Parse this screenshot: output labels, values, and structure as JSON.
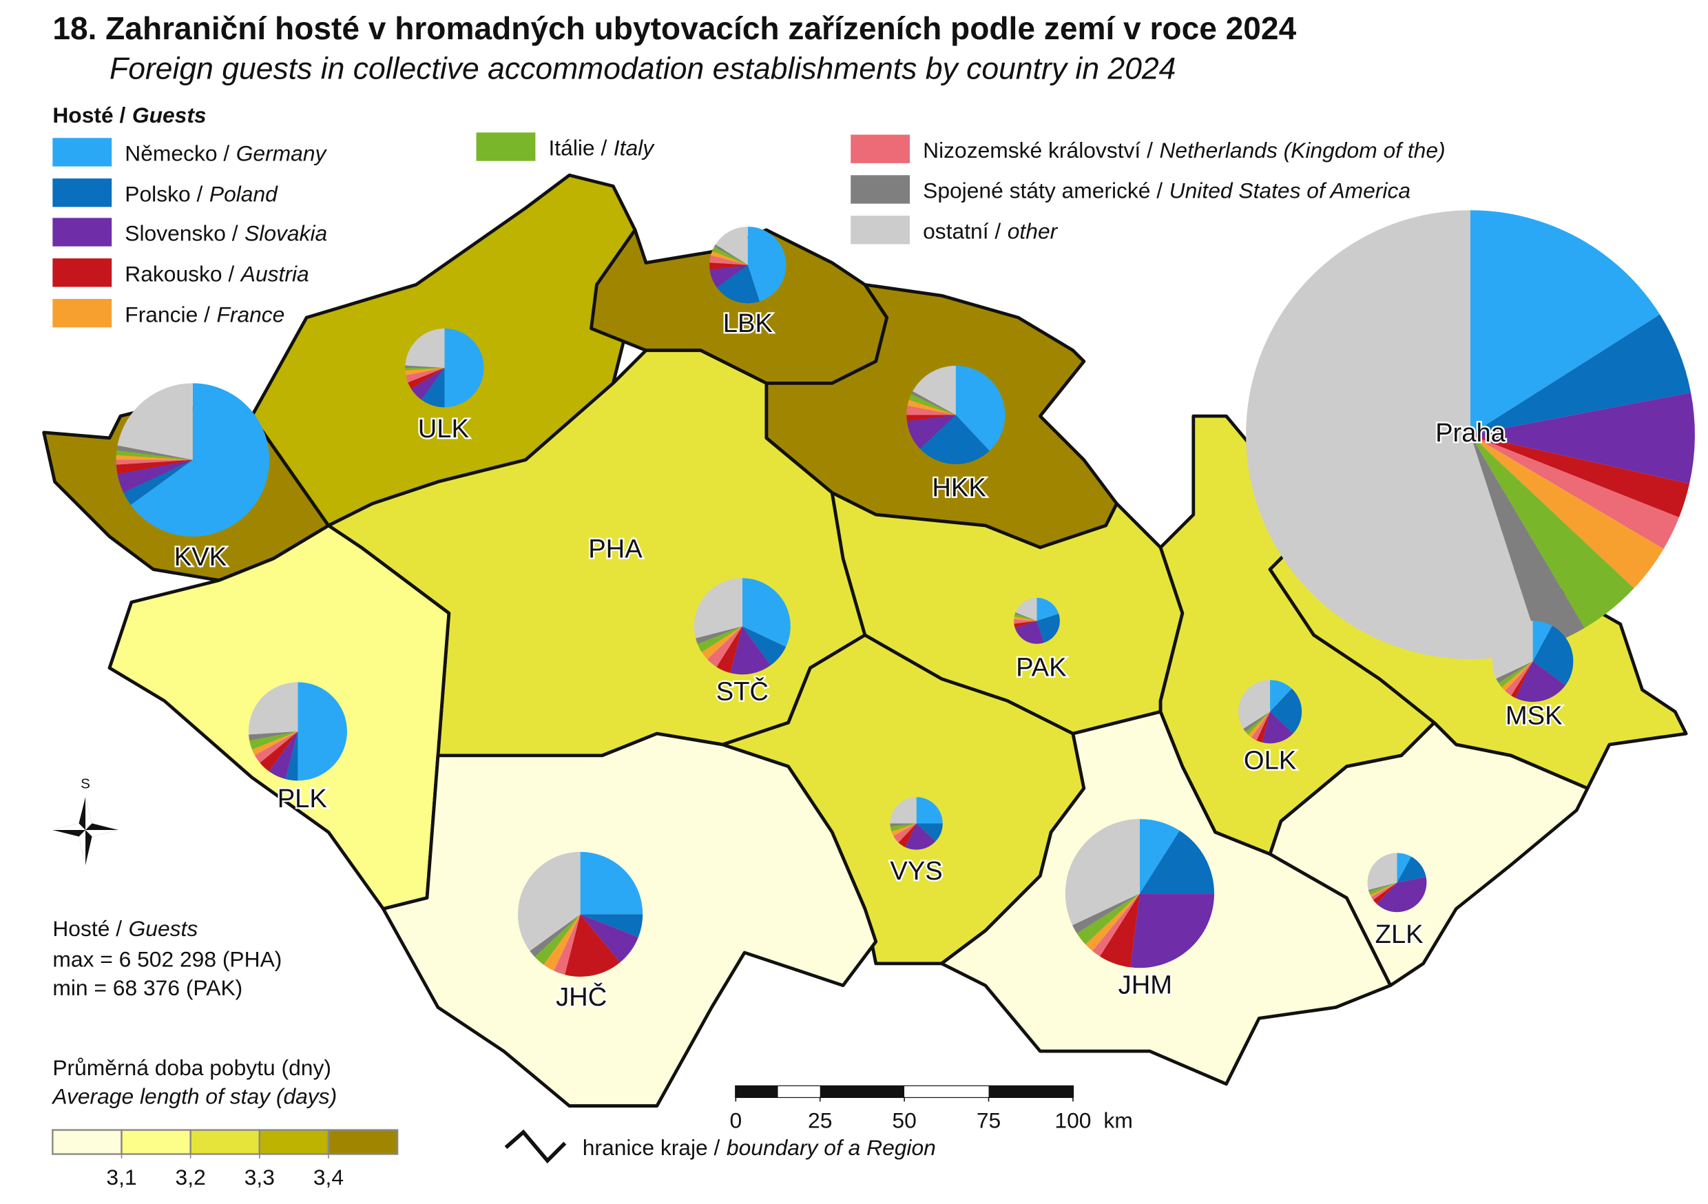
{
  "header": {
    "number": "18.",
    "title": "Zahraniční hosté v hromadných ubytovacích zařízeních podle zemí v roce 2024",
    "subtitle": "Foreign guests in collective accommodation establishments by country in 2024"
  },
  "legend": {
    "title_cz": "Hosté /",
    "title_en": "Guests"
  },
  "countries": [
    {
      "cz": "Německo /",
      "en": "Germany",
      "color": "#2aa8f5"
    },
    {
      "cz": "Polsko /",
      "en": "Poland",
      "color": "#0a6fbd"
    },
    {
      "cz": "Slovensko /",
      "en": "Slovakia",
      "color": "#6f2da8"
    },
    {
      "cz": "Rakousko /",
      "en": "Austria",
      "color": "#c4161c"
    },
    {
      "cz": "Nizozemské království /",
      "en": "Netherlands (Kingdom of the)",
      "color": "#ec6b77"
    },
    {
      "cz": "Francie /",
      "en": "France",
      "color": "#f7a030"
    },
    {
      "cz": "Itálie /",
      "en": "Italy",
      "color": "#7ab629"
    },
    {
      "cz": "Spojené státy americké /",
      "en": "United States of America",
      "color": "#7f7f7f"
    },
    {
      "cz": "ostatní /",
      "en": "other",
      "color": "#cccccc"
    }
  ],
  "regions": [
    {
      "code": "PHA",
      "pie_label": "Praha",
      "guests": 6502298,
      "stay_class": 4,
      "shares": [
        16,
        6,
        6.5,
        2.5,
        2.5,
        3.5,
        4.5,
        3.5,
        55
      ]
    },
    {
      "code": "KVK",
      "guests": 758000,
      "stay_class": 4,
      "shares": [
        65,
        3,
        4,
        2,
        1,
        1,
        1,
        1,
        22
      ]
    },
    {
      "code": "ULK",
      "guests": 200500,
      "stay_class": 3,
      "shares": [
        50,
        10,
        6,
        3,
        3,
        2,
        1,
        1,
        24
      ]
    },
    {
      "code": "LBK",
      "guests": 189500,
      "stay_class": 4,
      "shares": [
        45,
        20,
        8,
        3,
        3,
        2,
        2,
        1,
        16
      ]
    },
    {
      "code": "HKK",
      "guests": 313300,
      "stay_class": 4,
      "shares": [
        38,
        25,
        10,
        2,
        3,
        2,
        2,
        1,
        17
      ]
    },
    {
      "code": "STČ",
      "guests": 299600,
      "stay_class": 2,
      "shares": [
        32,
        8,
        14,
        5,
        4,
        3,
        3,
        2,
        29
      ]
    },
    {
      "code": "PLK",
      "guests": 313300,
      "stay_class": 1,
      "shares": [
        50,
        4,
        6,
        4,
        3,
        2,
        3,
        2,
        26
      ]
    },
    {
      "code": "PAK",
      "guests": 68376,
      "stay_class": 2,
      "shares": [
        20,
        25,
        25,
        3,
        3,
        2,
        2,
        1,
        19
      ]
    },
    {
      "code": "VYS",
      "guests": 89100,
      "stay_class": 2,
      "shares": [
        25,
        12,
        20,
        5,
        5,
        3,
        3,
        2,
        25
      ]
    },
    {
      "code": "JHČ",
      "guests": 502700,
      "stay_class": 0,
      "shares": [
        25,
        6,
        8,
        15,
        3,
        3,
        3,
        2,
        35
      ]
    },
    {
      "code": "JHM",
      "guests": 715500,
      "stay_class": 0,
      "shares": [
        9,
        16,
        27,
        7,
        2,
        2,
        3,
        2,
        32
      ]
    },
    {
      "code": "OLK",
      "guests": 130100,
      "stay_class": 2,
      "shares": [
        12,
        25,
        17,
        3,
        3,
        2,
        2,
        2,
        34
      ]
    },
    {
      "code": "MSK",
      "guests": 211800,
      "stay_class": 2,
      "shares": [
        8,
        27,
        22,
        2,
        3,
        2,
        2,
        2,
        32
      ]
    },
    {
      "code": "ZLK",
      "guests": 112800,
      "stay_class": 0,
      "shares": [
        8,
        14,
        40,
        3,
        2,
        1,
        2,
        1,
        29
      ]
    }
  ],
  "north": "S",
  "guests_note": {
    "title_cz": "Hosté /",
    "title_en": "Guests",
    "max": "max = 6 502 298 (PHA)",
    "min": "min = 68 376 (PAK)"
  },
  "stay_legend": {
    "title_cz": "Průměrná doba pobytu (dny)",
    "title_en": "Average length of stay (days)",
    "colors": [
      "#fefedc",
      "#fdfd8a",
      "#e6e43a",
      "#bdb300",
      "#a08600"
    ],
    "breaks": [
      {
        "value": 3.1,
        "label": "3,1"
      },
      {
        "value": 3.2,
        "label": "3,2"
      },
      {
        "value": 3.3,
        "label": "3,3"
      },
      {
        "value": 3.4,
        "label": "3,4"
      }
    ]
  },
  "scale_bar": {
    "ticks": [
      0,
      25,
      50,
      75,
      100
    ],
    "unit": "km"
  },
  "boundary_legend": {
    "cz": "hranice kraje /",
    "en": "boundary of a Region"
  }
}
